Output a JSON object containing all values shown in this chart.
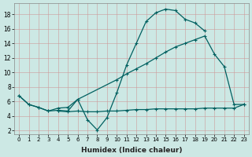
{
  "xlabel": "Humidex (Indice chaleur)",
  "bg_color": "#cce8e4",
  "line_color": "#006060",
  "xlim": [
    -0.5,
    23.5
  ],
  "ylim": [
    1.5,
    19.5
  ],
  "yticks": [
    2,
    4,
    6,
    8,
    10,
    12,
    14,
    16,
    18
  ],
  "xticks": [
    0,
    1,
    2,
    3,
    4,
    5,
    6,
    7,
    8,
    9,
    10,
    11,
    12,
    13,
    14,
    15,
    16,
    17,
    18,
    19,
    20,
    21,
    22,
    23
  ],
  "series": [
    {
      "x": [
        0,
        1,
        2,
        3,
        4,
        5,
        6,
        7,
        8,
        9,
        10,
        11,
        12,
        13,
        14,
        15,
        16,
        17,
        18,
        19
      ],
      "y": [
        6.8,
        5.6,
        5.2,
        4.7,
        4.8,
        4.7,
        6.3,
        3.5,
        2.1,
        3.8,
        7.2,
        11.0,
        14.0,
        17.0,
        18.2,
        18.7,
        18.5,
        17.3,
        16.8,
        15.7
      ]
    },
    {
      "x": [
        0,
        1,
        2,
        3,
        4,
        5,
        6,
        10,
        11,
        12,
        13,
        14,
        15,
        16,
        17,
        18,
        19,
        20,
        21,
        22,
        23
      ],
      "y": [
        6.8,
        5.6,
        5.2,
        4.7,
        5.1,
        5.2,
        6.3,
        9.0,
        9.8,
        10.5,
        11.2,
        12.0,
        12.8,
        13.5,
        14.0,
        14.5,
        15.0,
        12.5,
        10.8,
        5.6,
        5.6
      ]
    },
    {
      "x": [
        4,
        5,
        6,
        7,
        8,
        9,
        10,
        11,
        12,
        13,
        14,
        15,
        16,
        17,
        18,
        19,
        20,
        21,
        22,
        23
      ],
      "y": [
        4.7,
        4.6,
        4.7,
        4.6,
        4.6,
        4.7,
        4.7,
        4.8,
        4.9,
        4.9,
        5.0,
        5.0,
        5.0,
        5.0,
        5.0,
        5.1,
        5.1,
        5.1,
        5.1,
        5.6
      ]
    }
  ]
}
